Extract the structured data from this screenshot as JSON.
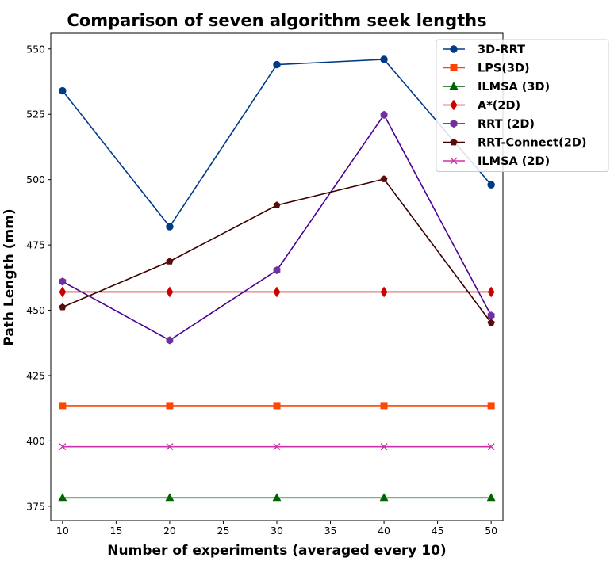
{
  "chart_data": {
    "type": "line",
    "title": "Comparison of seven algorithm seek lengths",
    "xlabel": "Number of experiments (averaged every 10)",
    "ylabel": "Path Length (mm)",
    "x": [
      10,
      20,
      30,
      40,
      50
    ],
    "xlim": [
      8.9,
      51.1
    ],
    "ylim": [
      369.5,
      556
    ],
    "xticks": [
      10,
      15,
      20,
      25,
      30,
      35,
      40,
      45,
      50
    ],
    "yticks": [
      375,
      400,
      425,
      450,
      475,
      500,
      525,
      550
    ],
    "grid": false,
    "legend_position": "top-right",
    "series": [
      {
        "name": "3D-RRT",
        "color": "#003b87",
        "marker": "circle",
        "values": [
          534,
          482,
          544,
          546,
          498
        ]
      },
      {
        "name": "LPS(3D)",
        "color": "#ff4500",
        "marker": "square",
        "values": [
          413.5,
          413.5,
          413.5,
          413.5,
          413.5
        ]
      },
      {
        "name": "ILMSA (3D)",
        "color": "#006400",
        "marker": "triangle",
        "values": [
          378.2,
          378.2,
          378.2,
          378.2,
          378.2
        ]
      },
      {
        "name": "A*(2D)",
        "color": "#cc0000",
        "marker": "diamond",
        "values": [
          457,
          457,
          457,
          457,
          457
        ]
      },
      {
        "name": "RRT (2D)",
        "color": "#4b0096",
        "markerColor": "#7030a0",
        "marker": "hexagon",
        "values": [
          461,
          438.5,
          465.3,
          524.8,
          448
        ]
      },
      {
        "name": "RRT-Connect(2D)",
        "color": "#3d0000",
        "markerColor": "#5c0a0a",
        "marker": "pentagon",
        "values": [
          451.2,
          468.7,
          490.2,
          500.2,
          445.2
        ]
      },
      {
        "name": "ILMSA (2D)",
        "color": "#cc33aa",
        "marker": "x",
        "values": [
          397.8,
          397.8,
          397.8,
          397.8,
          397.8
        ]
      }
    ]
  }
}
